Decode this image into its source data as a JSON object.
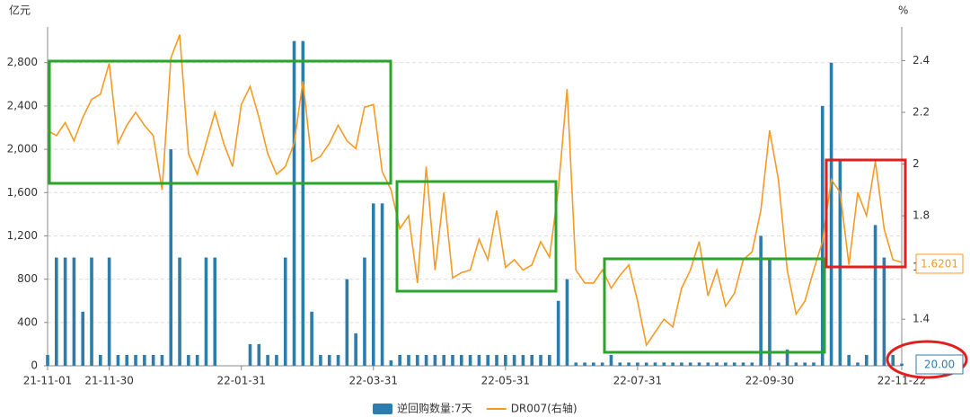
{
  "chart_data": {
    "type": "bar-line",
    "y_label": "亿元",
    "y2_label": "%",
    "categories": [
      "21-11-01",
      null,
      null,
      null,
      null,
      null,
      null,
      "21-11-30",
      null,
      null,
      null,
      null,
      null,
      null,
      null,
      null,
      null,
      null,
      null,
      null,
      null,
      null,
      "22-01-31",
      null,
      null,
      null,
      null,
      null,
      null,
      null,
      null,
      null,
      null,
      null,
      null,
      null,
      null,
      "22-03-31",
      null,
      null,
      null,
      null,
      null,
      null,
      null,
      null,
      null,
      null,
      null,
      null,
      null,
      null,
      "22-05-31",
      null,
      null,
      null,
      null,
      null,
      null,
      null,
      null,
      null,
      null,
      null,
      null,
      null,
      null,
      "22-07-31",
      null,
      null,
      null,
      null,
      null,
      null,
      null,
      null,
      null,
      null,
      null,
      null,
      null,
      null,
      "22-09-30",
      null,
      null,
      null,
      null,
      null,
      null,
      null,
      null,
      null,
      null,
      null,
      null,
      null,
      null,
      "22-11-22"
    ],
    "series": [
      {
        "name": "逆回购数量:7天",
        "type": "bar",
        "color": "#2e7cab",
        "values": [
          100,
          1000,
          1000,
          1000,
          500,
          1000,
          100,
          1000,
          100,
          100,
          100,
          100,
          100,
          100,
          2000,
          1000,
          100,
          100,
          1000,
          1000,
          0,
          0,
          0,
          200,
          200,
          100,
          100,
          1000,
          3000,
          3000,
          500,
          100,
          100,
          100,
          800,
          300,
          1000,
          1500,
          1500,
          50,
          100,
          100,
          100,
          100,
          100,
          100,
          100,
          100,
          100,
          100,
          100,
          100,
          100,
          100,
          100,
          100,
          100,
          100,
          600,
          800,
          30,
          30,
          30,
          30,
          100,
          30,
          30,
          30,
          30,
          30,
          30,
          30,
          30,
          30,
          30,
          30,
          30,
          30,
          30,
          30,
          30,
          1200,
          1000,
          30,
          150,
          30,
          30,
          30,
          2400,
          2800,
          1900,
          100,
          30,
          100,
          1300,
          1000,
          100,
          20
        ],
        "value_labels": [
          null,
          null,
          null,
          null,
          null,
          null,
          null,
          null,
          null,
          null,
          null,
          null,
          null,
          null,
          null,
          null,
          null,
          null,
          null,
          null,
          null,
          null,
          null,
          null,
          null,
          null,
          null,
          null,
          null,
          null,
          null,
          null,
          null,
          null,
          null,
          null,
          null,
          null,
          null,
          null,
          null,
          null,
          null,
          null,
          null,
          null,
          null,
          null,
          null,
          null,
          null,
          null,
          null,
          null,
          null,
          null,
          null,
          null,
          null,
          null,
          null,
          null,
          null,
          null,
          null,
          null,
          null,
          null,
          null,
          null,
          null,
          null,
          null,
          null,
          null,
          null,
          null,
          null,
          null,
          null,
          null,
          null,
          null,
          null,
          null,
          null,
          null,
          null,
          null,
          null,
          null,
          null,
          null,
          null,
          null,
          null,
          null,
          "20.00"
        ]
      },
      {
        "name": "DR007(右轴)",
        "type": "line",
        "axis": "y2",
        "color": "#f59a23",
        "values": [
          2.13,
          2.11,
          2.16,
          2.09,
          2.18,
          2.25,
          2.27,
          2.39,
          2.08,
          2.15,
          2.2,
          2.15,
          2.11,
          1.9,
          2.41,
          2.5,
          2.04,
          1.96,
          2.08,
          2.2,
          2.08,
          1.99,
          2.23,
          2.3,
          2.18,
          2.04,
          1.96,
          1.99,
          2.08,
          2.32,
          2.01,
          2.03,
          2.08,
          2.15,
          2.09,
          2.06,
          2.22,
          2.23,
          1.97,
          1.9,
          1.75,
          1.8,
          1.54,
          1.99,
          1.59,
          1.89,
          1.56,
          1.58,
          1.59,
          1.71,
          1.63,
          1.82,
          1.6,
          1.63,
          1.59,
          1.61,
          1.7,
          1.64,
          1.9,
          2.29,
          1.59,
          1.54,
          1.54,
          1.59,
          1.52,
          1.57,
          1.61,
          1.47,
          1.3,
          1.35,
          1.4,
          1.37,
          1.52,
          1.59,
          1.7,
          1.49,
          1.59,
          1.45,
          1.5,
          1.63,
          1.66,
          1.82,
          2.13,
          1.94,
          1.59,
          1.42,
          1.47,
          1.59,
          1.7,
          1.94,
          1.89,
          1.61,
          1.89,
          1.8,
          2.01,
          1.75,
          1.63,
          1.6201
        ]
      }
    ],
    "ylim": [
      0,
      3130
    ],
    "yticks": [
      0,
      400,
      800,
      {
        "value": 1200,
        "label": "1,200"
      },
      {
        "value": 1600,
        "label": "1,600"
      },
      {
        "value": 2000,
        "label": "2,000"
      },
      {
        "value": 2400,
        "label": "2,400"
      },
      {
        "value": 2800,
        "label": "2,800"
      }
    ],
    "y2lim": [
      1.22,
      2.53
    ],
    "y2ticks": [
      1.4,
      1.6,
      1.8,
      2,
      2.2,
      2.4
    ],
    "grid": true
  }
}
